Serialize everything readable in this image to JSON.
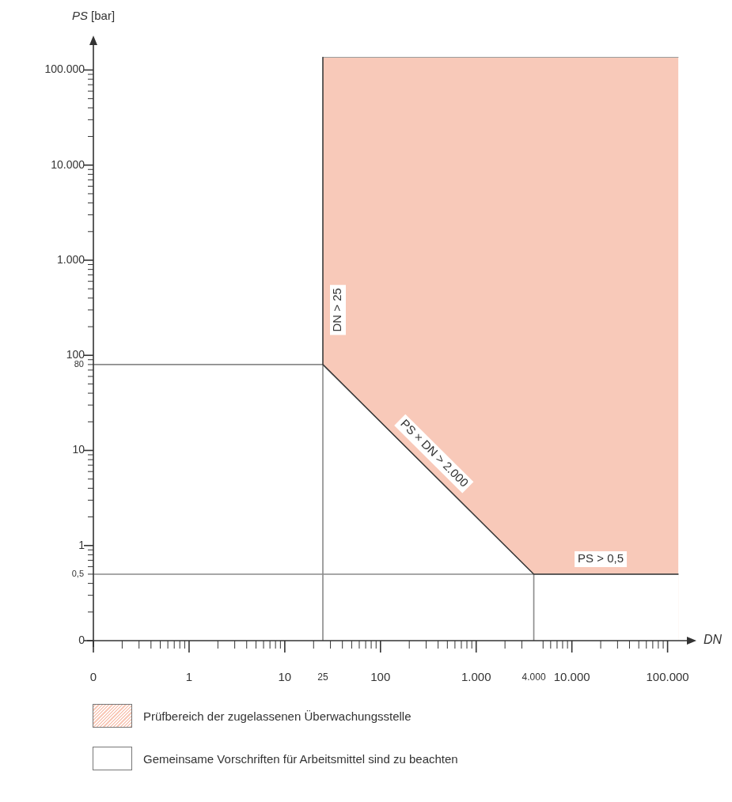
{
  "chart_data": {
    "type": "area",
    "xlabel": "DN",
    "ylabel": "PS [bar]",
    "log": "xy",
    "legend": "bottom",
    "xlim": [
      0.1,
      200000
    ],
    "ylim": [
      0.1,
      230000
    ],
    "xticks": [
      {
        "value": 0.1,
        "label": "0"
      },
      {
        "value": 0.2,
        "label": null
      },
      {
        "value": 0.3,
        "label": null
      },
      {
        "value": 0.4,
        "label": null
      },
      {
        "value": 0.5,
        "label": null
      },
      {
        "value": 0.6,
        "label": null
      },
      {
        "value": 0.7,
        "label": null
      },
      {
        "value": 0.8,
        "label": null
      },
      {
        "value": 0.9,
        "label": null
      },
      1,
      {
        "value": 2,
        "label": null
      },
      {
        "value": 3,
        "label": null
      },
      {
        "value": 4,
        "label": null
      },
      {
        "value": 5,
        "label": null
      },
      {
        "value": 6,
        "label": null
      },
      {
        "value": 7,
        "label": null
      },
      {
        "value": 8,
        "label": null
      },
      {
        "value": 9,
        "label": null
      },
      10,
      {
        "value": 20,
        "label": null
      },
      25,
      {
        "value": 30,
        "label": null
      },
      {
        "value": 40,
        "label": null
      },
      {
        "value": 50,
        "label": null
      },
      {
        "value": 60,
        "label": null
      },
      {
        "value": 70,
        "label": null
      },
      {
        "value": 80,
        "label": null
      },
      {
        "value": 90,
        "label": null
      },
      100,
      {
        "value": 200,
        "label": null
      },
      {
        "value": 300,
        "label": null
      },
      {
        "value": 400,
        "label": null
      },
      {
        "value": 500,
        "label": null
      },
      {
        "value": 600,
        "label": null
      },
      {
        "value": 700,
        "label": null
      },
      {
        "value": 800,
        "label": null
      },
      {
        "value": 900,
        "label": null
      },
      {
        "value": 1000,
        "label": "1.000"
      },
      {
        "value": 2000,
        "label": null
      },
      {
        "value": 3000,
        "label": null
      },
      {
        "value": 4000,
        "label": "4.000"
      },
      {
        "value": 5000,
        "label": null
      },
      {
        "value": 6000,
        "label": null
      },
      {
        "value": 7000,
        "label": null
      },
      {
        "value": 8000,
        "label": null
      },
      {
        "value": 9000,
        "label": null
      },
      {
        "value": 10000,
        "label": "10.000"
      },
      {
        "value": 20000,
        "label": null
      },
      {
        "value": 30000,
        "label": null
      },
      {
        "value": 40000,
        "label": null
      },
      {
        "value": 50000,
        "label": null
      },
      {
        "value": 60000,
        "label": null
      },
      {
        "value": 70000,
        "label": null
      },
      {
        "value": 80000,
        "label": null
      },
      {
        "value": 90000,
        "label": null
      },
      {
        "value": 100000,
        "label": "100.000"
      }
    ],
    "yticks": [
      {
        "value": 0.1,
        "label": "0"
      },
      {
        "value": 0.2,
        "label": null
      },
      {
        "value": 0.3,
        "label": null
      },
      {
        "value": 0.4,
        "label": null
      },
      {
        "value": 0.5,
        "label": "0,5"
      },
      {
        "value": 0.6,
        "label": null
      },
      {
        "value": 0.7,
        "label": null
      },
      {
        "value": 0.8,
        "label": null
      },
      {
        "value": 0.9,
        "label": null
      },
      1,
      {
        "value": 2,
        "label": null
      },
      {
        "value": 3,
        "label": null
      },
      {
        "value": 4,
        "label": null
      },
      {
        "value": 5,
        "label": null
      },
      {
        "value": 6,
        "label": null
      },
      {
        "value": 7,
        "label": null
      },
      {
        "value": 8,
        "label": null
      },
      {
        "value": 9,
        "label": null
      },
      10,
      {
        "value": 20,
        "label": null
      },
      {
        "value": 30,
        "label": null
      },
      {
        "value": 40,
        "label": null
      },
      {
        "value": 50,
        "label": null
      },
      {
        "value": 60,
        "label": null
      },
      {
        "value": 70,
        "label": null
      },
      80,
      {
        "value": 90,
        "label": null
      },
      100,
      {
        "value": 200,
        "label": null
      },
      {
        "value": 300,
        "label": null
      },
      {
        "value": 400,
        "label": null
      },
      {
        "value": 500,
        "label": null
      },
      {
        "value": 600,
        "label": null
      },
      {
        "value": 700,
        "label": null
      },
      {
        "value": 800,
        "label": null
      },
      {
        "value": 900,
        "label": null
      },
      {
        "value": 1000,
        "label": "1.000"
      },
      {
        "value": 2000,
        "label": null
      },
      {
        "value": 3000,
        "label": null
      },
      {
        "value": 4000,
        "label": null
      },
      {
        "value": 5000,
        "label": null
      },
      {
        "value": 6000,
        "label": null
      },
      {
        "value": 7000,
        "label": null
      },
      {
        "value": 8000,
        "label": null
      },
      {
        "value": 9000,
        "label": null
      },
      {
        "value": 10000,
        "label": "10.000"
      },
      {
        "value": 20000,
        "label": null
      },
      {
        "value": 30000,
        "label": null
      },
      {
        "value": 40000,
        "label": null
      },
      {
        "value": 50000,
        "label": null
      },
      {
        "value": 60000,
        "label": null
      },
      {
        "value": 70000,
        "label": null
      },
      {
        "value": 80000,
        "label": null
      },
      {
        "value": 90000,
        "label": null
      },
      {
        "value": 100000,
        "label": "100.000"
      }
    ],
    "series": [
      {
        "name": "Prüfbereich der zugelassenen Überwachungsstelle",
        "color": "#f8c9b9",
        "x": [
          25,
          130000
        ],
        "values": [
          136000,
          136000
        ]
      },
      {
        "name": "Gemeinsame Vorschriften für Arbeitsmittel sind zu beachten",
        "color": "#ffffff",
        "x": [
          25,
          4000,
          130000
        ],
        "values": [
          80,
          0.5,
          0.5
        ]
      },
      {
        "type": "line",
        "color": "#8a8a8a",
        "x": [
          0.1,
          25,
          25
        ],
        "values": [
          80,
          80,
          0.1
        ]
      },
      {
        "type": "line",
        "color": "#8a8a8a",
        "x": [
          0.1,
          4000,
          4000
        ],
        "values": [
          0.5,
          0.5,
          0.1
        ]
      },
      {
        "type": "line",
        "color": "#3a3a3a",
        "x": [
          25,
          25,
          4000,
          130000
        ],
        "values": [
          136000,
          80,
          0.5,
          0.5
        ]
      }
    ],
    "annotations": [
      {
        "text": "DN > 25",
        "x": 25,
        "y": 300
      },
      {
        "text": "PS × DN > 2.000",
        "x": 280,
        "y": 7.14
      },
      {
        "text": "PS > 0,5",
        "x": 20000,
        "y": 0.5
      }
    ]
  }
}
